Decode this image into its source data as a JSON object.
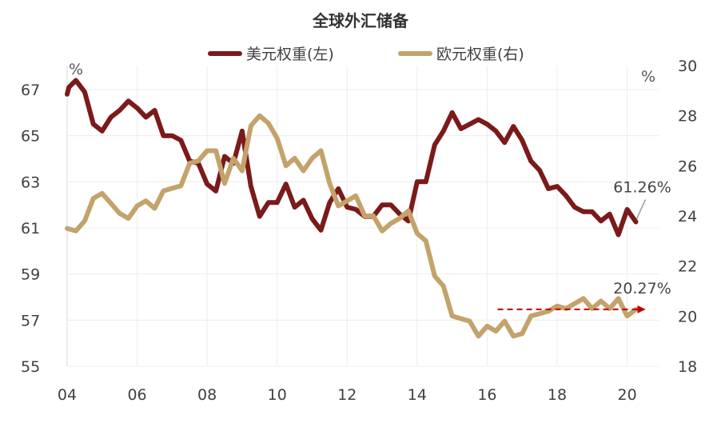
{
  "chart_data": {
    "type": "line",
    "title": "全球外汇储备",
    "grid": "vertical+horizontal light",
    "legend_placement": "top-center",
    "x_axis": {
      "range": [
        2004.0,
        2020.9
      ],
      "ticks": [
        2004,
        2006,
        2008,
        2010,
        2012,
        2014,
        2016,
        2018,
        2020
      ],
      "tick_labels": [
        "04",
        "06",
        "08",
        "10",
        "12",
        "14",
        "16",
        "18",
        "20"
      ]
    },
    "y_left": {
      "range": [
        55,
        68
      ],
      "ticks": [
        55,
        57,
        59,
        61,
        63,
        65,
        67
      ],
      "unit": "%"
    },
    "y_right": {
      "range": [
        18,
        30
      ],
      "ticks": [
        18,
        20,
        22,
        24,
        26,
        28,
        30
      ],
      "unit": "%"
    },
    "colors": {
      "usd": "#7b1a1a",
      "eur": "#c3a36b",
      "arrow": "#c00000",
      "pointer": "#999999"
    },
    "series": [
      {
        "name": "美元权重(左)",
        "axis": "left",
        "x": [
          2004.0,
          2004.05,
          2004.25,
          2004.5,
          2004.75,
          2005.0,
          2005.25,
          2005.5,
          2005.75,
          2006.0,
          2006.25,
          2006.5,
          2006.75,
          2007.0,
          2007.25,
          2007.5,
          2007.75,
          2008.0,
          2008.25,
          2008.5,
          2008.75,
          2009.0,
          2009.25,
          2009.5,
          2009.75,
          2010.0,
          2010.25,
          2010.5,
          2010.75,
          2011.0,
          2011.25,
          2011.5,
          2011.75,
          2012.0,
          2012.25,
          2012.5,
          2012.75,
          2013.0,
          2013.25,
          2013.5,
          2013.75,
          2014.0,
          2014.25,
          2014.5,
          2014.75,
          2015.0,
          2015.25,
          2015.5,
          2015.75,
          2016.0,
          2016.25,
          2016.5,
          2016.75,
          2017.0,
          2017.25,
          2017.5,
          2017.75,
          2018.0,
          2018.25,
          2018.5,
          2018.75,
          2019.0,
          2019.25,
          2019.5,
          2019.75,
          2020.0,
          2020.25
        ],
        "values": [
          66.8,
          67.1,
          67.4,
          66.9,
          65.5,
          65.2,
          65.8,
          66.1,
          66.5,
          66.2,
          65.8,
          66.1,
          65.0,
          65.0,
          64.8,
          63.9,
          63.8,
          62.9,
          62.6,
          64.1,
          63.8,
          65.2,
          62.8,
          61.5,
          62.1,
          62.1,
          62.9,
          61.9,
          62.2,
          61.4,
          60.9,
          62.1,
          62.7,
          61.9,
          61.8,
          61.5,
          61.5,
          62.0,
          62.0,
          61.6,
          61.3,
          63.0,
          63.0,
          64.6,
          65.2,
          66.0,
          65.3,
          65.5,
          65.7,
          65.5,
          65.2,
          64.7,
          65.4,
          64.8,
          63.9,
          63.5,
          62.7,
          62.8,
          62.4,
          61.9,
          61.7,
          61.7,
          61.3,
          61.6,
          60.7,
          61.8,
          61.26
        ]
      },
      {
        "name": "欧元权重(右)",
        "axis": "right",
        "x": [
          2004.0,
          2004.25,
          2004.5,
          2004.75,
          2005.0,
          2005.25,
          2005.5,
          2005.75,
          2006.0,
          2006.25,
          2006.5,
          2006.75,
          2007.0,
          2007.25,
          2007.5,
          2007.75,
          2008.0,
          2008.25,
          2008.5,
          2008.75,
          2009.0,
          2009.25,
          2009.5,
          2009.75,
          2010.0,
          2010.25,
          2010.5,
          2010.75,
          2011.0,
          2011.25,
          2011.5,
          2011.75,
          2012.0,
          2012.25,
          2012.5,
          2012.75,
          2013.0,
          2013.25,
          2013.5,
          2013.75,
          2014.0,
          2014.25,
          2014.5,
          2014.75,
          2015.0,
          2015.25,
          2015.5,
          2015.75,
          2016.0,
          2016.25,
          2016.5,
          2016.75,
          2017.0,
          2017.25,
          2017.5,
          2017.75,
          2018.0,
          2018.25,
          2018.5,
          2018.75,
          2019.0,
          2019.25,
          2019.5,
          2019.75,
          2020.0,
          2020.25
        ],
        "values": [
          23.5,
          23.4,
          23.8,
          24.7,
          24.9,
          24.5,
          24.1,
          23.9,
          24.4,
          24.6,
          24.3,
          25.0,
          25.1,
          25.2,
          26.1,
          26.2,
          26.6,
          26.6,
          25.3,
          26.3,
          25.8,
          27.6,
          28.0,
          27.7,
          27.1,
          26.0,
          26.3,
          25.8,
          26.3,
          26.6,
          25.3,
          24.4,
          24.6,
          24.8,
          24.0,
          24.0,
          23.4,
          23.7,
          23.9,
          24.2,
          23.3,
          23.0,
          21.6,
          21.2,
          20.0,
          19.9,
          19.8,
          19.2,
          19.6,
          19.4,
          19.8,
          19.2,
          19.3,
          20.0,
          20.1,
          20.2,
          20.4,
          20.3,
          20.5,
          20.7,
          20.3,
          20.6,
          20.3,
          20.7,
          20.0,
          20.27
        ]
      }
    ],
    "annotations": {
      "usd_last": "61.26%",
      "eur_last": "20.27%"
    },
    "arrow": {
      "x_start": 2016.3,
      "x_end": 2020.5,
      "y_right": 20.27
    }
  }
}
